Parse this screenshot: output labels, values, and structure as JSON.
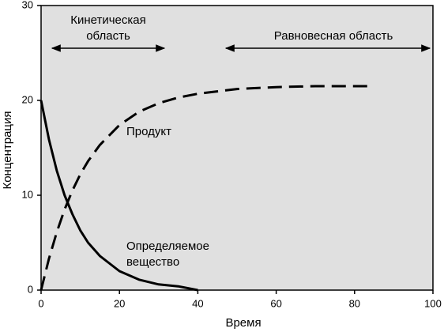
{
  "chart_data": {
    "type": "line",
    "x_label": "Время",
    "y_label": "Концентрация",
    "x": [
      0,
      2,
      4,
      6,
      8,
      10,
      12,
      15,
      20,
      25,
      30,
      35,
      40,
      50,
      60,
      70,
      85
    ],
    "series": [
      {
        "color": "#000000",
        "dash": true,
        "values": [
          0,
          3.3,
          6.1,
          8.5,
          10.5,
          12.2,
          13.6,
          15.3,
          17.4,
          18.8,
          19.7,
          20.3,
          20.7,
          21.2,
          21.4,
          21.5,
          21.5
        ]
      },
      {
        "color": "#000000",
        "dash": false,
        "values": [
          20,
          15.9,
          12.6,
          10.0,
          8.0,
          6.3,
          5.0,
          3.6,
          2.0,
          1.1,
          0.6,
          0.4,
          0,
          null,
          null,
          null,
          null
        ]
      }
    ],
    "xlim": [
      0,
      100
    ],
    "xticks": [
      0,
      20,
      40,
      60,
      80,
      100
    ],
    "ylim": [
      0,
      30
    ],
    "yticks": [
      0,
      10,
      20,
      30
    ],
    "background": "#e0e0e0",
    "annotations": {
      "kinetic": [
        "Кинетическая",
        "область"
      ],
      "equilibrium": "Равновесная область",
      "product": "Продукт",
      "analyte": [
        "Определяемое",
        "вещество"
      ]
    }
  }
}
